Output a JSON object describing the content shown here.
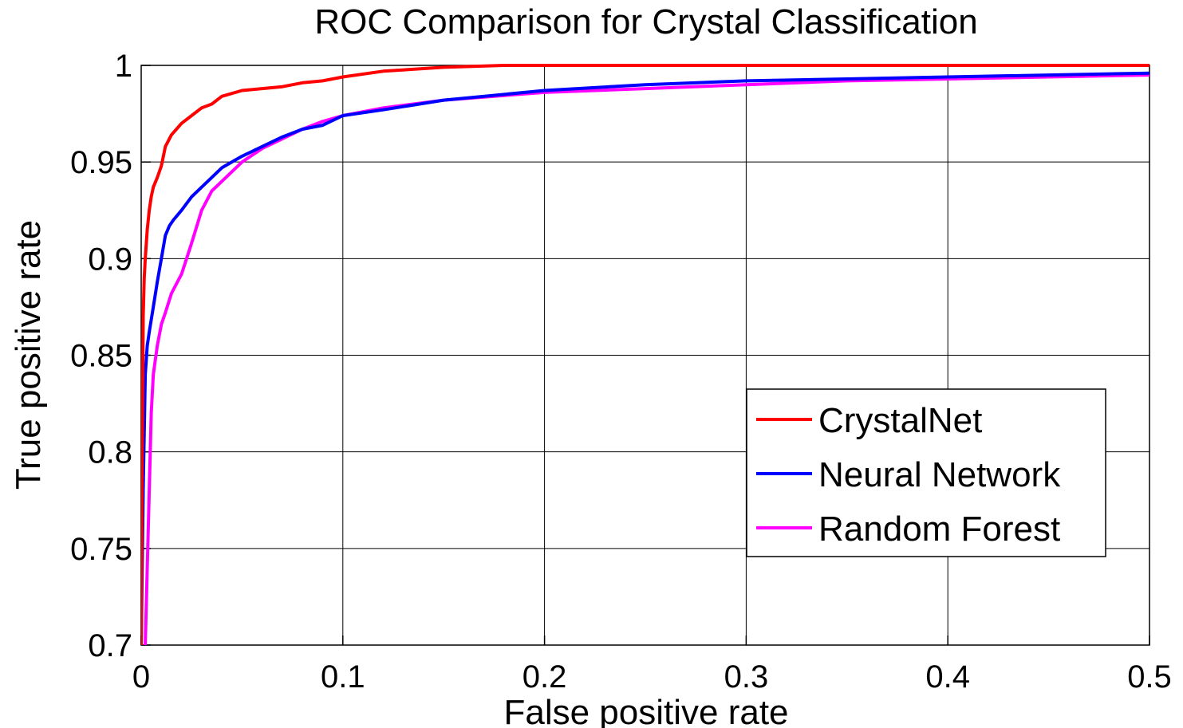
{
  "chart_data": {
    "type": "line",
    "title": "ROC Comparison for Crystal Classification",
    "xlabel": "False positive rate",
    "ylabel": "True positive rate",
    "xlim": [
      0,
      0.5
    ],
    "ylim": [
      0.7,
      1
    ],
    "xticks": [
      0,
      0.1,
      0.2,
      0.3,
      0.4,
      0.5
    ],
    "xtick_labels": [
      "0",
      "0.1",
      "0.2",
      "0.3",
      "0.4",
      "0.5"
    ],
    "yticks": [
      0.7,
      0.75,
      0.8,
      0.85,
      0.9,
      0.95,
      1
    ],
    "ytick_labels": [
      "0.7",
      "0.75",
      "0.8",
      "0.85",
      "0.9",
      "0.95",
      "1"
    ],
    "grid": true,
    "legend_position": "lower-right",
    "series": [
      {
        "name": "CrystalNet",
        "color": "#ff0000",
        "x": [
          0.0,
          0.0005,
          0.001,
          0.0015,
          0.002,
          0.003,
          0.004,
          0.005,
          0.006,
          0.008,
          0.01,
          0.012,
          0.015,
          0.02,
          0.025,
          0.03,
          0.035,
          0.04,
          0.05,
          0.06,
          0.07,
          0.08,
          0.09,
          0.1,
          0.12,
          0.15,
          0.18,
          0.2,
          0.25,
          0.3,
          0.4,
          0.5
        ],
        "y": [
          0.7,
          0.8,
          0.87,
          0.89,
          0.9,
          0.915,
          0.925,
          0.932,
          0.937,
          0.942,
          0.948,
          0.958,
          0.964,
          0.97,
          0.974,
          0.978,
          0.98,
          0.984,
          0.987,
          0.988,
          0.989,
          0.991,
          0.992,
          0.994,
          0.997,
          0.999,
          1.0,
          1.0,
          1.0,
          1.0,
          1.0,
          1.0
        ]
      },
      {
        "name": "Neural Network",
        "color": "#0000ff",
        "x": [
          0.0,
          0.001,
          0.002,
          0.003,
          0.004,
          0.006,
          0.008,
          0.01,
          0.012,
          0.014,
          0.016,
          0.02,
          0.025,
          0.03,
          0.035,
          0.04,
          0.05,
          0.06,
          0.07,
          0.08,
          0.09,
          0.1,
          0.12,
          0.15,
          0.2,
          0.25,
          0.3,
          0.35,
          0.4,
          0.45,
          0.5
        ],
        "y": [
          0.7,
          0.78,
          0.84,
          0.855,
          0.862,
          0.875,
          0.888,
          0.9,
          0.912,
          0.917,
          0.92,
          0.925,
          0.932,
          0.937,
          0.942,
          0.947,
          0.953,
          0.958,
          0.963,
          0.967,
          0.969,
          0.974,
          0.977,
          0.982,
          0.987,
          0.99,
          0.992,
          0.993,
          0.994,
          0.995,
          0.996
        ]
      },
      {
        "name": "Random Forest",
        "color": "#ff00ff",
        "x": [
          0.002,
          0.003,
          0.004,
          0.005,
          0.006,
          0.008,
          0.01,
          0.012,
          0.015,
          0.02,
          0.025,
          0.03,
          0.035,
          0.04,
          0.05,
          0.06,
          0.07,
          0.08,
          0.09,
          0.1,
          0.12,
          0.15,
          0.2,
          0.25,
          0.3,
          0.35,
          0.4,
          0.45,
          0.5
        ],
        "y": [
          0.7,
          0.74,
          0.78,
          0.82,
          0.84,
          0.855,
          0.866,
          0.872,
          0.882,
          0.892,
          0.908,
          0.925,
          0.935,
          0.94,
          0.95,
          0.957,
          0.962,
          0.967,
          0.971,
          0.974,
          0.978,
          0.982,
          0.986,
          0.988,
          0.99,
          0.992,
          0.993,
          0.994,
          0.995
        ]
      }
    ]
  }
}
